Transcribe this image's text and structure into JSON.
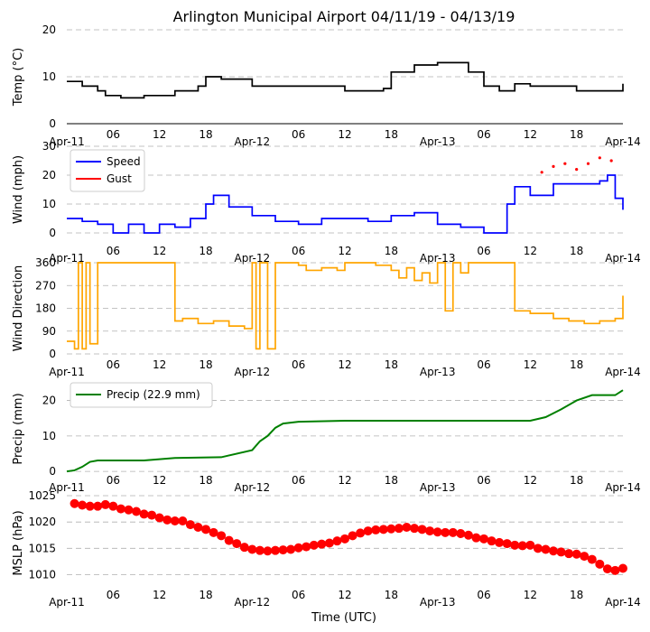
{
  "title": "Arlington Municipal Airport 04/11/19 - 04/13/19",
  "xlabel": "Time (UTC)",
  "x_tick_labels": [
    "Apr-11",
    "06",
    "12",
    "18",
    "Apr-12",
    "06",
    "12",
    "18",
    "Apr-13",
    "06",
    "12",
    "18",
    "Apr-14"
  ],
  "colors": {
    "temp": "#000000",
    "speed": "#0000ff",
    "gust": "#ff0000",
    "dir": "#ffa500",
    "precip": "#008000",
    "mslp": "#ff0000",
    "grid": "#b0b0b0"
  },
  "chart_data": [
    {
      "type": "line",
      "title": "Arlington Municipal Airport 04/11/19 - 04/13/19",
      "ylabel": "Temp ($^\\circ$C)",
      "ylabel_display": "Temp (°C)",
      "ylim": [
        0,
        20
      ],
      "yticks": [
        0,
        10,
        20
      ],
      "x_hours": [
        0,
        2,
        4,
        5,
        7,
        10,
        12,
        14,
        17,
        18,
        20,
        24,
        36,
        41,
        42,
        45,
        48,
        52,
        54,
        56,
        58,
        60,
        66,
        72
      ],
      "series": [
        {
          "name": "Temp",
          "values": [
            9,
            8,
            7,
            6,
            5.5,
            6,
            6,
            7,
            8,
            10,
            9.5,
            8,
            7,
            7.5,
            11,
            12.5,
            13,
            11,
            8,
            7,
            8.5,
            8,
            7,
            8.5
          ]
        }
      ]
    },
    {
      "type": "line",
      "ylabel": "Wind (mph)",
      "ylim": [
        0,
        30
      ],
      "yticks": [
        0,
        10,
        20,
        30
      ],
      "legend": [
        "Speed",
        "Gust"
      ],
      "x_hours": [
        0,
        2,
        4,
        6,
        8,
        10,
        12,
        14,
        16,
        18,
        19,
        21,
        24,
        27,
        30,
        33,
        36,
        39,
        42,
        45,
        48,
        51,
        54,
        56,
        57,
        58,
        60,
        63,
        66,
        69,
        70,
        71,
        72
      ],
      "series": [
        {
          "name": "Speed",
          "values": [
            5,
            4,
            3,
            0,
            3,
            0,
            3,
            2,
            5,
            10,
            13,
            9,
            6,
            4,
            3,
            5,
            5,
            4,
            6,
            7,
            3,
            2,
            0,
            0,
            10,
            16,
            13,
            17,
            17,
            18,
            20,
            12,
            8
          ]
        },
        {
          "name": "Gust",
          "x_hours": [
            61.5,
            63,
            64.5,
            66,
            67.5,
            69,
            70.5
          ],
          "values": [
            21,
            23,
            24,
            22,
            24,
            26,
            25
          ]
        }
      ]
    },
    {
      "type": "line",
      "ylabel": "Wind Direction",
      "ylim": [
        0,
        360
      ],
      "yticks": [
        0,
        90,
        180,
        270,
        360
      ],
      "x_hours": [
        0,
        1,
        1.5,
        2,
        2.5,
        3,
        4,
        5,
        7,
        9,
        10,
        11,
        12,
        13,
        14,
        15,
        17,
        19,
        21,
        23,
        24,
        24.5,
        25,
        26,
        27,
        28,
        29,
        30,
        31,
        33,
        35,
        36,
        38,
        40,
        42,
        43,
        44,
        45,
        46,
        47,
        48,
        49,
        50,
        51,
        52,
        53,
        54,
        55,
        56,
        57,
        58,
        60,
        63,
        65,
        67,
        69,
        71,
        72
      ],
      "series": [
        {
          "name": "Direction",
          "values": [
            50,
            20,
            360,
            20,
            360,
            40,
            360,
            360,
            360,
            360,
            360,
            360,
            360,
            360,
            130,
            140,
            120,
            130,
            110,
            100,
            360,
            20,
            360,
            20,
            360,
            360,
            360,
            350,
            330,
            340,
            330,
            360,
            360,
            350,
            330,
            300,
            340,
            290,
            320,
            280,
            360,
            170,
            360,
            320,
            360,
            360,
            360,
            360,
            360,
            360,
            170,
            160,
            140,
            130,
            120,
            130,
            140,
            230
          ]
        }
      ]
    },
    {
      "type": "line",
      "ylabel": "Precip (mm)",
      "ylim": [
        -2,
        26
      ],
      "yticks": [
        0,
        10,
        20
      ],
      "legend": [
        "Precip (22.9 mm)"
      ],
      "x_hours": [
        0,
        1,
        2,
        3,
        4,
        10,
        14,
        20,
        24,
        25,
        26,
        27,
        28,
        30,
        36,
        42,
        48,
        54,
        60,
        62,
        64,
        66,
        68,
        70,
        71,
        72
      ],
      "series": [
        {
          "name": "Precip (22.9 mm)",
          "values": [
            0,
            0.3,
            1.3,
            2.7,
            3.1,
            3.1,
            3.8,
            4,
            6,
            8.5,
            10,
            12.3,
            13.5,
            14,
            14.3,
            14.3,
            14.3,
            14.3,
            14.3,
            15.3,
            17.5,
            20,
            21.5,
            21.5,
            21.5,
            22.9
          ]
        }
      ]
    },
    {
      "type": "scatter",
      "ylabel": "MSLP (hPa)",
      "ylim": [
        1007,
        1025
      ],
      "yticks": [
        1010,
        1015,
        1020,
        1025
      ],
      "x_hours": [
        1,
        2,
        3,
        4,
        5,
        6,
        7,
        8,
        9,
        10,
        11,
        12,
        13,
        14,
        15,
        16,
        17,
        18,
        19,
        20,
        21,
        22,
        23,
        24,
        25,
        26,
        27,
        28,
        29,
        30,
        31,
        32,
        33,
        34,
        35,
        36,
        37,
        38,
        39,
        40,
        41,
        42,
        43,
        44,
        45,
        46,
        47,
        48,
        49,
        50,
        51,
        52,
        53,
        54,
        55,
        56,
        57,
        58,
        59,
        60,
        61,
        62,
        63,
        64,
        65,
        66,
        67,
        68,
        69,
        70,
        71,
        72
      ],
      "series": [
        {
          "name": "MSLP",
          "values": [
            1023.5,
            1023.2,
            1023.0,
            1023.0,
            1023.3,
            1023.0,
            1022.5,
            1022.3,
            1022.0,
            1021.5,
            1021.3,
            1020.8,
            1020.4,
            1020.2,
            1020.2,
            1019.5,
            1019.0,
            1018.6,
            1018.0,
            1017.4,
            1016.5,
            1015.9,
            1015.2,
            1014.8,
            1014.6,
            1014.5,
            1014.6,
            1014.7,
            1014.8,
            1015.1,
            1015.3,
            1015.6,
            1015.8,
            1016.0,
            1016.4,
            1016.8,
            1017.4,
            1017.9,
            1018.3,
            1018.5,
            1018.6,
            1018.7,
            1018.8,
            1019.0,
            1018.8,
            1018.6,
            1018.3,
            1018.1,
            1018.0,
            1018.0,
            1017.8,
            1017.5,
            1017.0,
            1016.8,
            1016.4,
            1016.1,
            1015.9,
            1015.6,
            1015.5,
            1015.6,
            1015.0,
            1014.8,
            1014.5,
            1014.3,
            1014.0,
            1013.9,
            1013.5,
            1012.9,
            1012.0,
            1011.1,
            1010.8,
            1011.2
          ]
        }
      ]
    }
  ]
}
